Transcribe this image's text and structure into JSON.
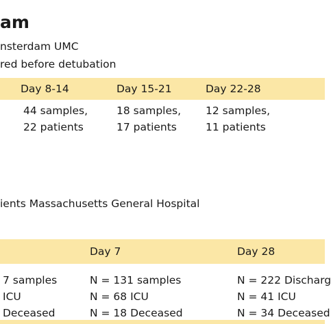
{
  "section1": {
    "title": "am",
    "lines": [
      "nsterdam UMC",
      "red before detubation"
    ],
    "headers": [
      "Day 8-14",
      "Day 15-21",
      "Day 22-28"
    ],
    "cells": [
      [
        "44 samples,",
        "22 patients"
      ],
      [
        "18 samples,",
        "17 patients"
      ],
      [
        "12 samples,",
        "11 patients"
      ]
    ]
  },
  "section2": {
    "line": "ients Massachusetts General Hospital",
    "headers": [
      "Day 7",
      "Day 28"
    ],
    "rows": [
      [
        "7 samples",
        "N = 131 samples",
        "N = 222 Discharg"
      ],
      [
        "ICU",
        "N = 68 ICU",
        "N = 41 ICU"
      ],
      [
        "Deceased",
        "N = 18 Deceased",
        "N = 34 Deceased"
      ]
    ]
  }
}
